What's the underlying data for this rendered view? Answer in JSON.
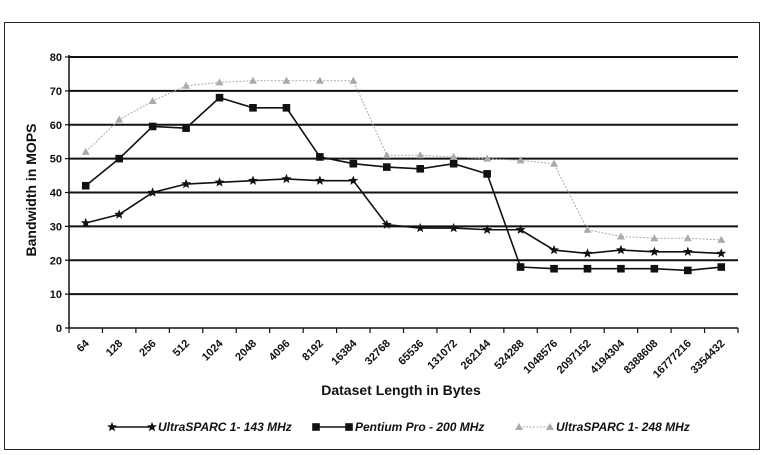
{
  "chart_data": {
    "type": "line",
    "xlabel": "Dataset Length in Bytes",
    "ylabel": "Bandwidth in MOPS",
    "ylim": [
      0,
      80
    ],
    "yticks": [
      "0",
      "10",
      "20",
      "30",
      "40",
      "50",
      "60",
      "70",
      "80"
    ],
    "grid": true,
    "legend_position": "bottom",
    "categories": [
      "64",
      "128",
      "256",
      "512",
      "1024",
      "2048",
      "4096",
      "8192",
      "16384",
      "32768",
      "65536",
      "131072",
      "262144",
      "524288",
      "1048576",
      "2097152",
      "4194304",
      "8388608",
      "16777216",
      "3354432"
    ],
    "series": [
      {
        "name": "UltraSPARC 1- 143 MHz",
        "marker": "star",
        "color": "#111111",
        "values": [
          31,
          33.5,
          40,
          42.5,
          43,
          43.5,
          44,
          43.5,
          43.5,
          30.5,
          29.5,
          29.5,
          29,
          29,
          23,
          22,
          23,
          22.5,
          22.5,
          22
        ]
      },
      {
        "name": "Pentium Pro - 200 MHz",
        "marker": "square",
        "color": "#111111",
        "values": [
          42,
          50,
          59.5,
          59,
          68,
          65,
          65,
          50.5,
          48.5,
          47.5,
          47,
          48.5,
          45.5,
          18,
          17.5,
          17.5,
          17.5,
          17.5,
          17,
          18
        ]
      },
      {
        "name": "UltraSPARC 1- 248 MHz",
        "marker": "triangle",
        "color": "#aaaaaa",
        "values": [
          52,
          61.5,
          67,
          71.5,
          72.5,
          73,
          73,
          73,
          73,
          51,
          51,
          50.5,
          50,
          49.5,
          48.5,
          29,
          27,
          26.5,
          26.5,
          26
        ]
      }
    ]
  }
}
